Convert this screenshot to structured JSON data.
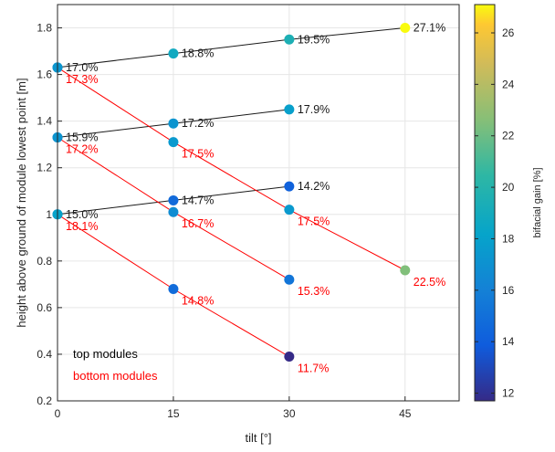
{
  "chart_data": {
    "type": "scatter",
    "xlabel": "tilt [°]",
    "ylabel": "height above ground of module lowest point [m]",
    "xlim": [
      0,
      52
    ],
    "ylim": [
      0.2,
      1.9
    ],
    "xticks": [
      0,
      15,
      30,
      45
    ],
    "yticks": [
      0.2,
      0.4,
      0.6,
      0.8,
      1.0,
      1.2,
      1.4,
      1.6,
      1.8
    ],
    "ytick_labels": [
      "0.2",
      "0.4",
      "0.6",
      "0.8",
      "1",
      "1.2",
      "1.4",
      "1.6",
      "1.8"
    ],
    "grid": true,
    "legend": {
      "placement": "bottom-left",
      "entries": [
        {
          "label": "top modules",
          "color": "#000000"
        },
        {
          "label": "bottom modules",
          "color": "#ff0000"
        }
      ]
    },
    "colorbar": {
      "label": "bifacial gain [%]",
      "range": [
        11.7,
        27.1
      ],
      "ticks": [
        12,
        14,
        16,
        18,
        20,
        22,
        24,
        26
      ],
      "colormap": "parula"
    },
    "top_lines": [
      {
        "points": [
          {
            "x": 0,
            "y": 1.63,
            "gain": 17.0,
            "label": "17.0%"
          },
          {
            "x": 15,
            "y": 1.69,
            "gain": 18.8,
            "label": "18.8%"
          },
          {
            "x": 30,
            "y": 1.75,
            "gain": 19.5,
            "label": "19.5%"
          },
          {
            "x": 45,
            "y": 1.8,
            "gain": 27.1,
            "label": "27.1%"
          }
        ]
      },
      {
        "points": [
          {
            "x": 0,
            "y": 1.33,
            "gain": 15.9,
            "label": "15.9%"
          },
          {
            "x": 15,
            "y": 1.39,
            "gain": 17.2,
            "label": "17.2%"
          },
          {
            "x": 30,
            "y": 1.45,
            "gain": 17.9,
            "label": "17.9%"
          }
        ]
      },
      {
        "points": [
          {
            "x": 0,
            "y": 1.0,
            "gain": 15.0,
            "label": "15.0%"
          },
          {
            "x": 15,
            "y": 1.06,
            "gain": 14.7,
            "label": "14.7%"
          },
          {
            "x": 30,
            "y": 1.12,
            "gain": 14.2,
            "label": "14.2%"
          }
        ]
      }
    ],
    "bottom_lines": [
      {
        "points": [
          {
            "x": 0,
            "y": 1.63,
            "gain": 17.3,
            "label": "17.3%"
          },
          {
            "x": 15,
            "y": 1.31,
            "gain": 17.5,
            "label": "17.5%"
          },
          {
            "x": 30,
            "y": 1.02,
            "gain": 17.5,
            "label": "17.5%"
          },
          {
            "x": 45,
            "y": 0.76,
            "gain": 22.5,
            "label": "22.5%"
          }
        ]
      },
      {
        "points": [
          {
            "x": 0,
            "y": 1.33,
            "gain": 17.2,
            "label": "17.2%"
          },
          {
            "x": 15,
            "y": 1.01,
            "gain": 16.7,
            "label": "16.7%"
          },
          {
            "x": 30,
            "y": 0.72,
            "gain": 15.3,
            "label": "15.3%"
          }
        ]
      },
      {
        "points": [
          {
            "x": 0,
            "y": 1.0,
            "gain": 18.1,
            "label": "18.1%"
          },
          {
            "x": 15,
            "y": 0.68,
            "gain": 14.8,
            "label": "14.8%"
          },
          {
            "x": 30,
            "y": 0.39,
            "gain": 11.7,
            "label": "11.7%"
          }
        ]
      }
    ]
  }
}
